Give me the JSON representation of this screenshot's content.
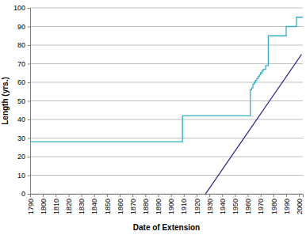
{
  "chart_data": {
    "type": "line",
    "x_label": "Date of Extension",
    "y_label": "Length (yrs.)",
    "xlim": [
      1790,
      2003
    ],
    "xticks": [
      1790,
      1800,
      1810,
      1820,
      1830,
      1840,
      1850,
      1860,
      1870,
      1880,
      1890,
      1900,
      1910,
      1920,
      1930,
      1940,
      1950,
      1960,
      1970,
      1980,
      1990,
      2000
    ],
    "ylim": [
      0,
      100
    ],
    "yticks": [
      0,
      10,
      20,
      30,
      40,
      50,
      60,
      70,
      80,
      90,
      100
    ],
    "grid": true,
    "series": [
      {
        "type": "step",
        "color": "#2fb0c8",
        "x": [
          1790,
          1909,
          1962,
          1963,
          1964,
          1965,
          1966,
          1967,
          1968,
          1969,
          1970,
          1971,
          1972,
          1974,
          1976,
          1990,
          1998,
          2003
        ],
        "values": [
          28,
          42,
          56,
          57,
          59,
          60,
          61,
          62,
          63,
          64,
          65,
          66,
          67,
          69,
          85,
          90,
          95,
          95
        ]
      },
      {
        "type": "line",
        "color": "#2a1f8f",
        "x": [
          1927,
          2002
        ],
        "values": [
          0,
          75
        ]
      }
    ]
  }
}
